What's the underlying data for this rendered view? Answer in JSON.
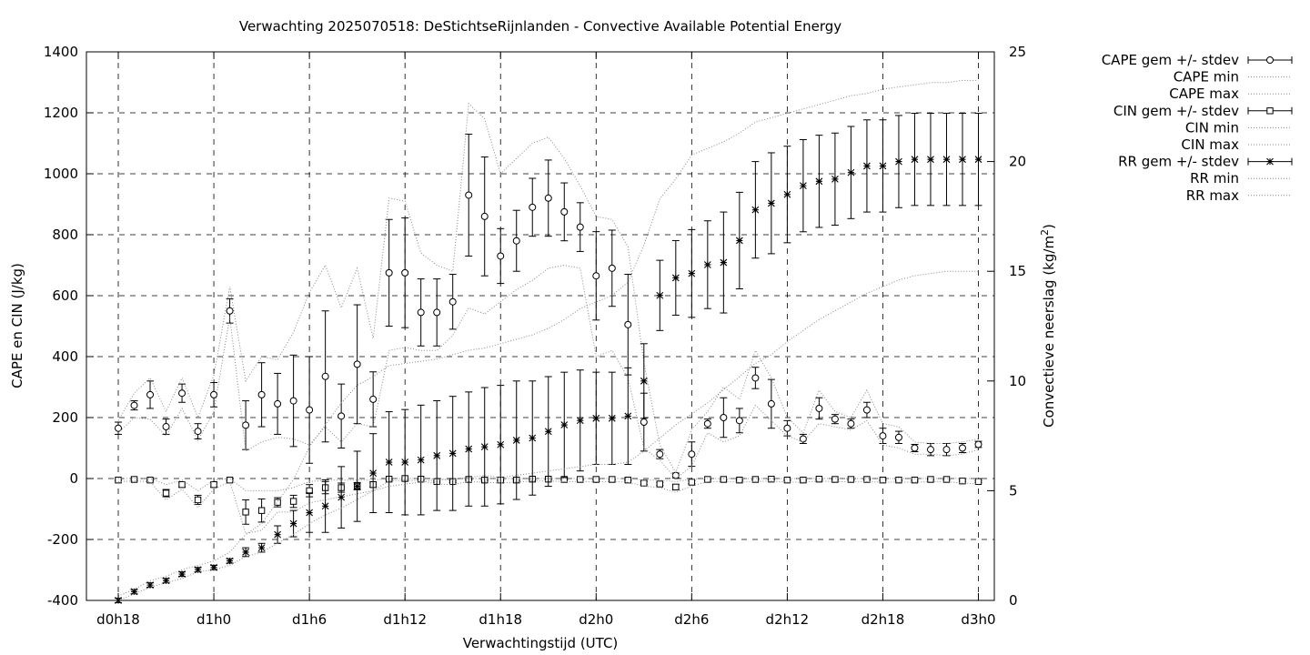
{
  "chart_data": {
    "type": "line",
    "title": "Verwachting 2025070518: DeStichtseRijnlanden - Convective Available Potential Energy",
    "xlabel": "Verwachtingstijd (UTC)",
    "ylabel": "CAPE en CIN (J/kg)",
    "y2label_main": "Convectieve neerslag (kg/m",
    "y2label_sup": "2",
    "y2label_end": ")",
    "xlim": [
      0,
      57
    ],
    "ylim": [
      -400,
      1400
    ],
    "y2lim": [
      0,
      25
    ],
    "grid": true,
    "legend_position": "outside-top-right",
    "x_ticks": [
      {
        "x": 2,
        "label": "d0h18"
      },
      {
        "x": 8,
        "label": "d1h0"
      },
      {
        "x": 14,
        "label": "d1h6"
      },
      {
        "x": 20,
        "label": "d1h12"
      },
      {
        "x": 26,
        "label": "d1h18"
      },
      {
        "x": 32,
        "label": "d2h0"
      },
      {
        "x": 38,
        "label": "d2h6"
      },
      {
        "x": 44,
        "label": "d2h12"
      },
      {
        "x": 50,
        "label": "d2h18"
      },
      {
        "x": 56,
        "label": "d3h0"
      }
    ],
    "y_ticks": [
      -400,
      -200,
      0,
      200,
      400,
      600,
      800,
      1000,
      1200,
      1400
    ],
    "y2_ticks": [
      0,
      5,
      10,
      15,
      20,
      25
    ],
    "x": [
      2,
      3,
      4,
      5,
      6,
      7,
      8,
      9,
      10,
      11,
      12,
      13,
      14,
      15,
      16,
      17,
      18,
      19,
      20,
      21,
      22,
      23,
      24,
      25,
      26,
      27,
      28,
      29,
      30,
      31,
      32,
      33,
      34,
      35,
      36,
      37,
      38,
      39,
      40,
      41,
      42,
      43,
      44,
      45,
      46,
      47,
      48,
      49,
      50,
      51,
      52,
      53,
      54,
      55,
      56
    ],
    "series": [
      {
        "name": "CAPE gem +/- stdev",
        "marker": "circle",
        "values": [
          165,
          240,
          275,
          170,
          280,
          155,
          275,
          550,
          175,
          275,
          245,
          255,
          225,
          335,
          205,
          375,
          260,
          675,
          675,
          545,
          545,
          580,
          930,
          860,
          730,
          780,
          890,
          920,
          875,
          825,
          665,
          690,
          505,
          185,
          80,
          10,
          80,
          180,
          200,
          190,
          330,
          245,
          165,
          130,
          230,
          195,
          180,
          225,
          140,
          135,
          100,
          95,
          95,
          100,
          112
        ],
        "stdev": [
          20,
          15,
          45,
          25,
          30,
          25,
          40,
          40,
          80,
          105,
          100,
          150,
          175,
          215,
          105,
          195,
          90,
          175,
          180,
          110,
          110,
          90,
          200,
          195,
          90,
          100,
          95,
          125,
          95,
          80,
          145,
          125,
          165,
          95,
          15,
          8,
          40,
          15,
          65,
          40,
          35,
          80,
          25,
          15,
          35,
          15,
          15,
          25,
          25,
          20,
          12,
          20,
          20,
          15,
          10
        ]
      },
      {
        "name": "CAPE min",
        "values": [
          150,
          200,
          195,
          140,
          230,
          125,
          220,
          530,
          90,
          120,
          135,
          130,
          110,
          170,
          120,
          180,
          170,
          420,
          430,
          420,
          420,
          470,
          560,
          540,
          580,
          620,
          650,
          690,
          700,
          690,
          400,
          420,
          330,
          100,
          60,
          0,
          40,
          150,
          120,
          140,
          240,
          190,
          140,
          120,
          180,
          170,
          160,
          190,
          110,
          100,
          80,
          80,
          75,
          80,
          95
        ]
      },
      {
        "name": "CAPE max",
        "values": [
          190,
          280,
          330,
          220,
          330,
          200,
          340,
          630,
          320,
          400,
          390,
          480,
          610,
          700,
          560,
          690,
          460,
          920,
          910,
          740,
          700,
          680,
          1230,
          1180,
          1000,
          1050,
          1100,
          1120,
          1050,
          960,
          860,
          850,
          760,
          380,
          110,
          20,
          160,
          220,
          300,
          260,
          420,
          330,
          200,
          150,
          290,
          220,
          200,
          290,
          180,
          170,
          120,
          115,
          115,
          120,
          130
        ]
      },
      {
        "name": "CIN gem +/- stdev",
        "marker": "square",
        "values": [
          -5,
          -3,
          -5,
          -48,
          -20,
          -70,
          -20,
          -5,
          -110,
          -105,
          -78,
          -75,
          -40,
          -30,
          -30,
          -25,
          -20,
          -2,
          0,
          -2,
          -10,
          -10,
          -3,
          -5,
          -5,
          -5,
          -2,
          -2,
          -3,
          -3,
          -3,
          -3,
          -5,
          -15,
          -18,
          -28,
          -12,
          -3,
          -3,
          -5,
          -3,
          -2,
          -5,
          -5,
          -2,
          -3,
          -3,
          -3,
          -5,
          -5,
          -5,
          -3,
          -3,
          -8,
          -10
        ],
        "stdev": [
          3,
          3,
          3,
          12,
          8,
          15,
          8,
          3,
          40,
          38,
          15,
          20,
          20,
          20,
          15,
          12,
          8,
          2,
          2,
          2,
          3,
          3,
          2,
          2,
          2,
          2,
          2,
          2,
          2,
          2,
          2,
          2,
          2,
          5,
          5,
          8,
          5,
          2,
          2,
          2,
          2,
          2,
          2,
          2,
          2,
          2,
          2,
          2,
          2,
          2,
          2,
          2,
          2,
          3,
          3
        ]
      },
      {
        "name": "CIN min",
        "values": [
          -10,
          -8,
          -10,
          -70,
          -35,
          -95,
          -35,
          -10,
          -180,
          -170,
          -110,
          -110,
          -80,
          -70,
          -60,
          -50,
          -40,
          -8,
          -5,
          -8,
          -18,
          -20,
          -10,
          -12,
          -15,
          -12,
          -8,
          -8,
          -10,
          -10,
          -10,
          -10,
          -12,
          -25,
          -30,
          -45,
          -25,
          -10,
          -10,
          -12,
          -10,
          -8,
          -12,
          -12,
          -8,
          -10,
          -10,
          -10,
          -12,
          -12,
          -12,
          -10,
          -10,
          -15,
          -18
        ]
      },
      {
        "name": "CIN max",
        "values": [
          0,
          0,
          0,
          -20,
          -5,
          -40,
          -5,
          0,
          -40,
          -40,
          -40,
          -30,
          -10,
          -5,
          -5,
          -5,
          -5,
          0,
          0,
          0,
          -2,
          -2,
          0,
          0,
          0,
          0,
          0,
          0,
          0,
          0,
          0,
          0,
          0,
          -5,
          -5,
          -10,
          -2,
          0,
          0,
          0,
          0,
          0,
          0,
          0,
          0,
          0,
          0,
          0,
          0,
          0,
          0,
          0,
          0,
          0,
          0
        ]
      },
      {
        "name": "RR gem +/- stdev",
        "marker": "star",
        "axis": "y2",
        "values": [
          0.0,
          0.4,
          0.7,
          0.9,
          1.2,
          1.4,
          1.5,
          1.8,
          2.2,
          2.4,
          3.0,
          3.5,
          4.0,
          4.3,
          4.7,
          5.2,
          5.8,
          6.3,
          6.3,
          6.4,
          6.6,
          6.7,
          6.9,
          7.0,
          7.1,
          7.3,
          7.4,
          7.7,
          8.0,
          8.2,
          8.3,
          8.3,
          8.4,
          10.0,
          13.9,
          14.7,
          14.9,
          15.3,
          15.4,
          16.4,
          17.8,
          18.1,
          18.5,
          18.9,
          19.1,
          19.2,
          19.5,
          19.8,
          19.8,
          20.0,
          20.1,
          20.1,
          20.1,
          20.1,
          20.1
        ],
        "stdev": [
          0.1,
          0.1,
          0.1,
          0.1,
          0.1,
          0.1,
          0.1,
          0.1,
          0.2,
          0.2,
          0.4,
          0.6,
          0.9,
          1.2,
          1.4,
          1.6,
          1.8,
          2.3,
          2.4,
          2.5,
          2.5,
          2.6,
          2.6,
          2.7,
          2.7,
          2.7,
          2.6,
          2.5,
          2.4,
          2.3,
          2.1,
          2.1,
          2.2,
          1.7,
          1.6,
          1.7,
          2.0,
          2.0,
          2.3,
          2.2,
          2.2,
          2.3,
          2.2,
          2.1,
          2.1,
          2.1,
          2.1,
          2.1,
          2.1,
          2.1,
          2.1,
          2.1,
          2.1,
          2.1,
          2.1
        ]
      },
      {
        "name": "RR min",
        "axis": "y2",
        "values": [
          0.0,
          0.3,
          0.6,
          0.8,
          1.0,
          1.3,
          1.4,
          1.6,
          2.0,
          2.2,
          2.6,
          3.0,
          3.5,
          3.9,
          4.2,
          4.6,
          5.0,
          5.2,
          5.3,
          5.4,
          5.5,
          5.5,
          5.6,
          5.7,
          5.6,
          5.7,
          5.8,
          5.9,
          6.0,
          6.1,
          6.2,
          6.2,
          6.3,
          6.8,
          7.4,
          8.0,
          8.5,
          9.0,
          9.6,
          10.2,
          10.8,
          11.2,
          11.8,
          12.3,
          12.8,
          13.2,
          13.6,
          14.0,
          14.3,
          14.6,
          14.8,
          14.9,
          15.0,
          15.0,
          15.0
        ]
      },
      {
        "name": "RR max",
        "axis": "y2",
        "values": [
          0.2,
          0.5,
          0.9,
          1.1,
          1.4,
          1.6,
          1.8,
          2.2,
          3.0,
          3.5,
          4.5,
          5.5,
          7.0,
          8.0,
          9.0,
          9.8,
          10.2,
          10.7,
          10.8,
          10.9,
          11.0,
          11.2,
          11.4,
          11.5,
          11.7,
          11.9,
          12.1,
          12.4,
          12.8,
          13.3,
          13.6,
          13.9,
          14.5,
          16.2,
          18.3,
          19.2,
          20.3,
          20.6,
          20.9,
          21.3,
          21.8,
          22.0,
          22.2,
          22.4,
          22.6,
          22.8,
          23.0,
          23.1,
          23.3,
          23.4,
          23.5,
          23.6,
          23.6,
          23.7,
          23.7
        ]
      }
    ]
  }
}
